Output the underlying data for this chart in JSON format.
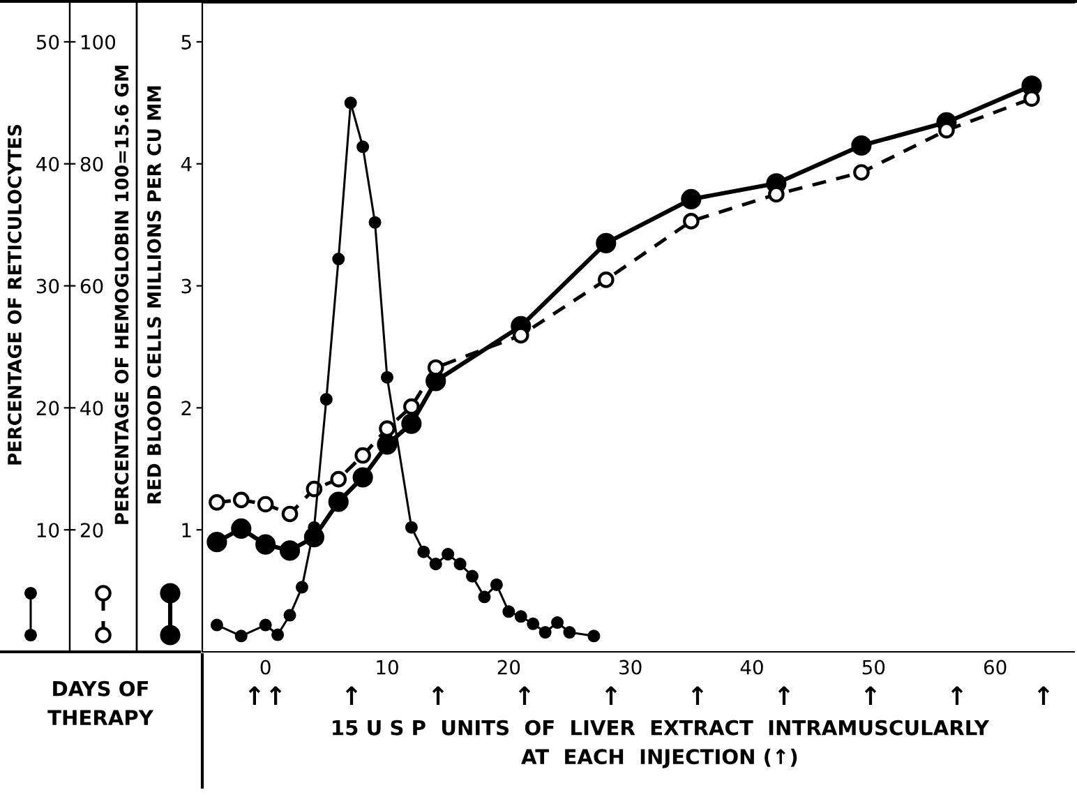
{
  "chart_data": {
    "type": "line",
    "xlabel": "DAYS OF\nTHERAPY",
    "ylabel": "RED BLOOD CELLS MILLIONS PER CU MM",
    "y2label": "PERCENTAGE OF HEMOGLOBIN 100=15.6 GM",
    "y3label": "PERCENTAGE OF RETICULOCYTES",
    "xlim": [
      -5.2,
      66.5
    ],
    "xticks": [
      0,
      10,
      20,
      30,
      40,
      50,
      60
    ],
    "ylim": [
      0,
      5.32
    ],
    "yticks": [
      1,
      2,
      3,
      4,
      5
    ],
    "y2lim": [
      0,
      106.4
    ],
    "y2ticks": [
      20,
      40,
      60,
      80,
      100
    ],
    "y3lim": [
      0,
      53.2
    ],
    "y3ticks": [
      10,
      20,
      30,
      40,
      50
    ],
    "grid": false,
    "legend": false,
    "series": [
      {
        "color": "#000000",
        "axis": "y3",
        "marker": "circle",
        "line_style": "solid",
        "x": [
          -4,
          -2,
          0,
          1,
          2,
          3,
          4,
          5,
          6,
          7,
          8,
          9,
          10,
          12,
          13,
          14,
          15,
          16,
          17,
          18,
          19,
          20,
          21,
          22,
          23,
          24,
          25,
          27
        ],
        "values": [
          2.2,
          1.3,
          2.2,
          1.4,
          3.0,
          5.3,
          10.2,
          20.7,
          32.2,
          45.0,
          41.4,
          35.2,
          22.5,
          10.2,
          8.2,
          7.2,
          8.0,
          7.2,
          6.2,
          4.5,
          5.5,
          3.3,
          2.9,
          2.3,
          1.6,
          2.4,
          1.6,
          1.3
        ]
      },
      {
        "color": "#000000",
        "axis": "y2",
        "marker": "circle",
        "line_style": "dashed",
        "x": [
          -4,
          -2,
          0,
          2,
          4,
          6,
          8,
          10,
          12,
          14,
          21,
          28,
          35,
          42,
          49,
          56,
          63
        ],
        "values": [
          24.5,
          24.9,
          24.2,
          22.6,
          26.7,
          28.3,
          32.2,
          36.6,
          40.2,
          46.6,
          51.9,
          61.0,
          70.6,
          75.0,
          78.6,
          85.5,
          90.7
        ]
      },
      {
        "color": "#000000",
        "axis": "y",
        "marker": "circle",
        "line_style": "solid",
        "x": [
          -4,
          -2,
          0,
          2,
          4,
          6,
          8,
          10,
          12,
          14,
          21,
          28,
          35,
          42,
          49,
          56,
          63
        ],
        "values": [
          0.9,
          1.01,
          0.88,
          0.83,
          0.94,
          1.23,
          1.43,
          1.7,
          1.87,
          2.22,
          2.67,
          3.35,
          3.71,
          3.84,
          4.15,
          4.34,
          4.64
        ]
      }
    ],
    "annotations": [
      "↑↑",
      "↑",
      "↑",
      "↑",
      "↑",
      "↑",
      "↑",
      "↑",
      "↑",
      "↑",
      "15 U S P  UNITS  OF  LIVER  EXTRACT  INTRAMUSCULARLY\nAT  EACH  INJECTION (↑)"
    ]
  }
}
